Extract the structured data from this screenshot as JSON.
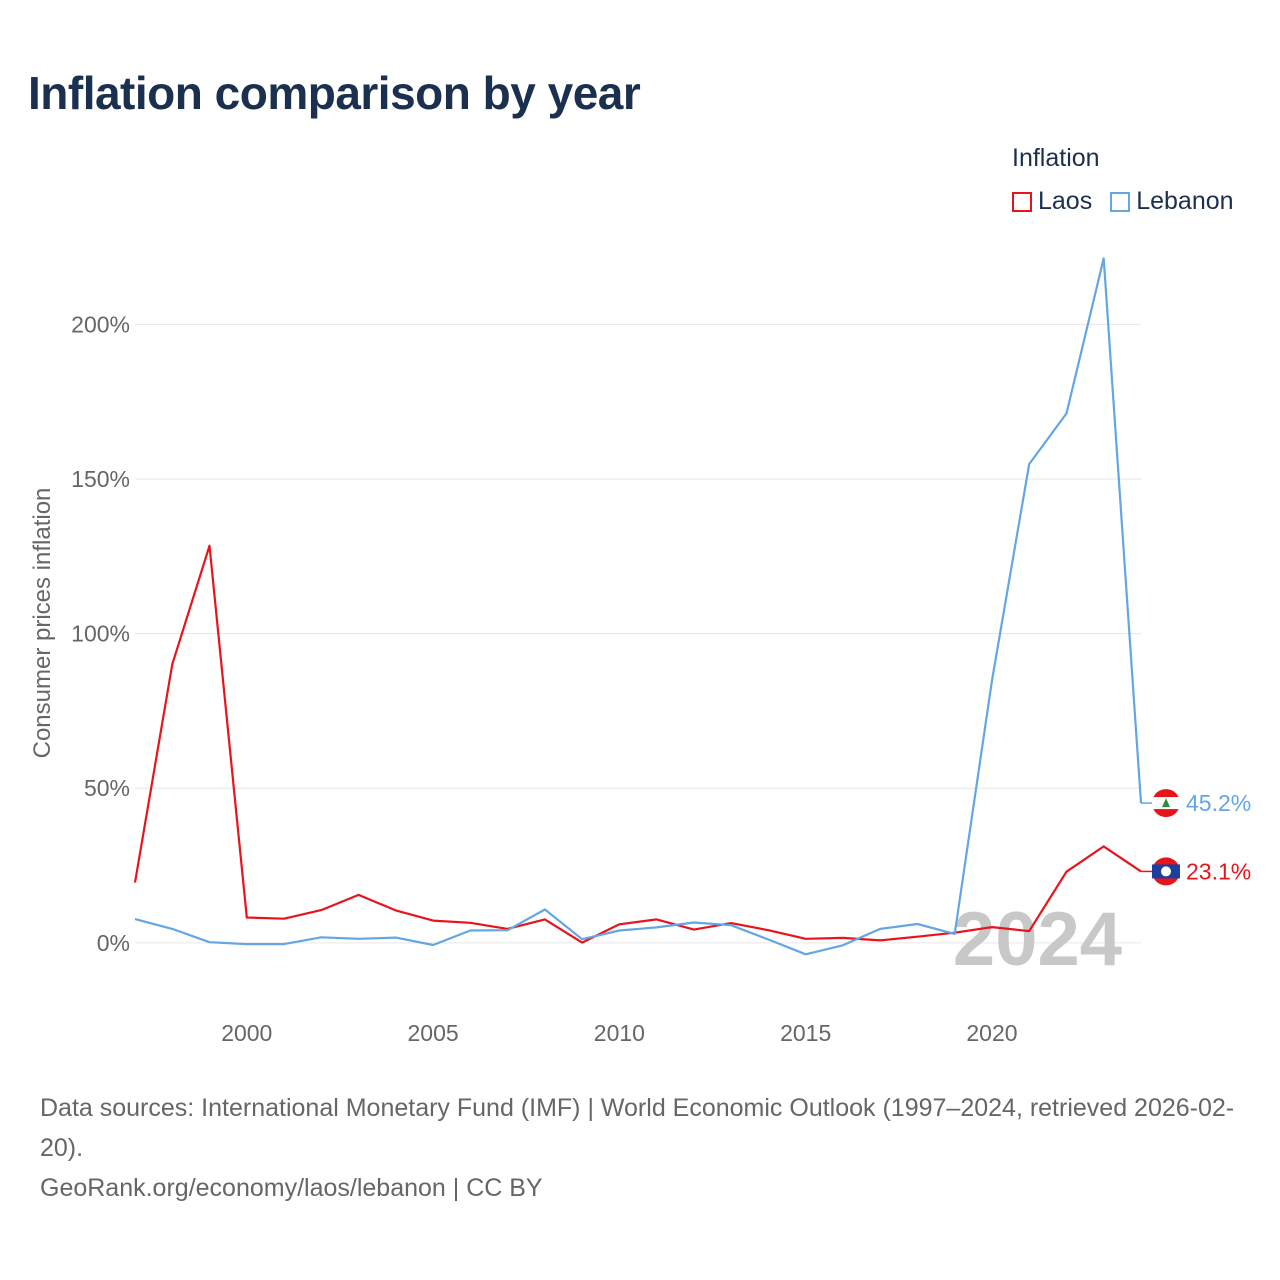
{
  "title": "Inflation comparison by year",
  "legend": {
    "title": "Inflation",
    "items": [
      {
        "label": "Laos",
        "color": "#e8141c"
      },
      {
        "label": "Lebanon",
        "color": "#63a6e3"
      }
    ]
  },
  "footer": {
    "sources": "Data sources: International Monetary Fund (IMF) | World Economic Outlook (1997–2024, retrieved 2026-02-20).",
    "link": "GeoRank.org/economy/laos/lebanon | CC BY"
  },
  "chart_data": {
    "type": "line",
    "title": "Inflation comparison by year",
    "xlabel": "",
    "ylabel": "Consumer prices inflation",
    "xlim": [
      1997,
      2024
    ],
    "ylim": [
      -23,
      225
    ],
    "x_ticks": [
      2000,
      2005,
      2010,
      2015,
      2020
    ],
    "y_ticks": [
      0,
      50,
      100,
      150,
      200
    ],
    "y_tick_labels": [
      "0%",
      "50%",
      "100%",
      "150%",
      "200%"
    ],
    "x": [
      1997,
      1998,
      1999,
      2000,
      2001,
      2002,
      2003,
      2004,
      2005,
      2006,
      2007,
      2008,
      2009,
      2010,
      2011,
      2012,
      2013,
      2014,
      2015,
      2016,
      2017,
      2018,
      2019,
      2020,
      2021,
      2022,
      2023,
      2024
    ],
    "series": [
      {
        "name": "Laos",
        "color": "#e8141c",
        "values": [
          19.5,
          90.1,
          128.4,
          8.2,
          7.8,
          10.6,
          15.5,
          10.5,
          7.2,
          6.5,
          4.5,
          7.6,
          0.1,
          6.0,
          7.6,
          4.3,
          6.4,
          4.1,
          1.3,
          1.6,
          0.8,
          2.0,
          3.3,
          5.1,
          3.8,
          23.0,
          31.2,
          23.1
        ],
        "end_label": "23.1%"
      },
      {
        "name": "Lebanon",
        "color": "#63a6e3",
        "values": [
          7.7,
          4.5,
          0.2,
          -0.4,
          -0.4,
          1.8,
          1.3,
          1.7,
          -0.7,
          4.0,
          4.1,
          10.8,
          1.2,
          4.0,
          5.0,
          6.6,
          5.7,
          1.1,
          -3.7,
          -0.8,
          4.5,
          6.1,
          2.9,
          84.9,
          154.8,
          171.2,
          221.3,
          45.2
        ],
        "end_label": "45.2%"
      }
    ],
    "year_watermark": "2024",
    "grid": true
  }
}
